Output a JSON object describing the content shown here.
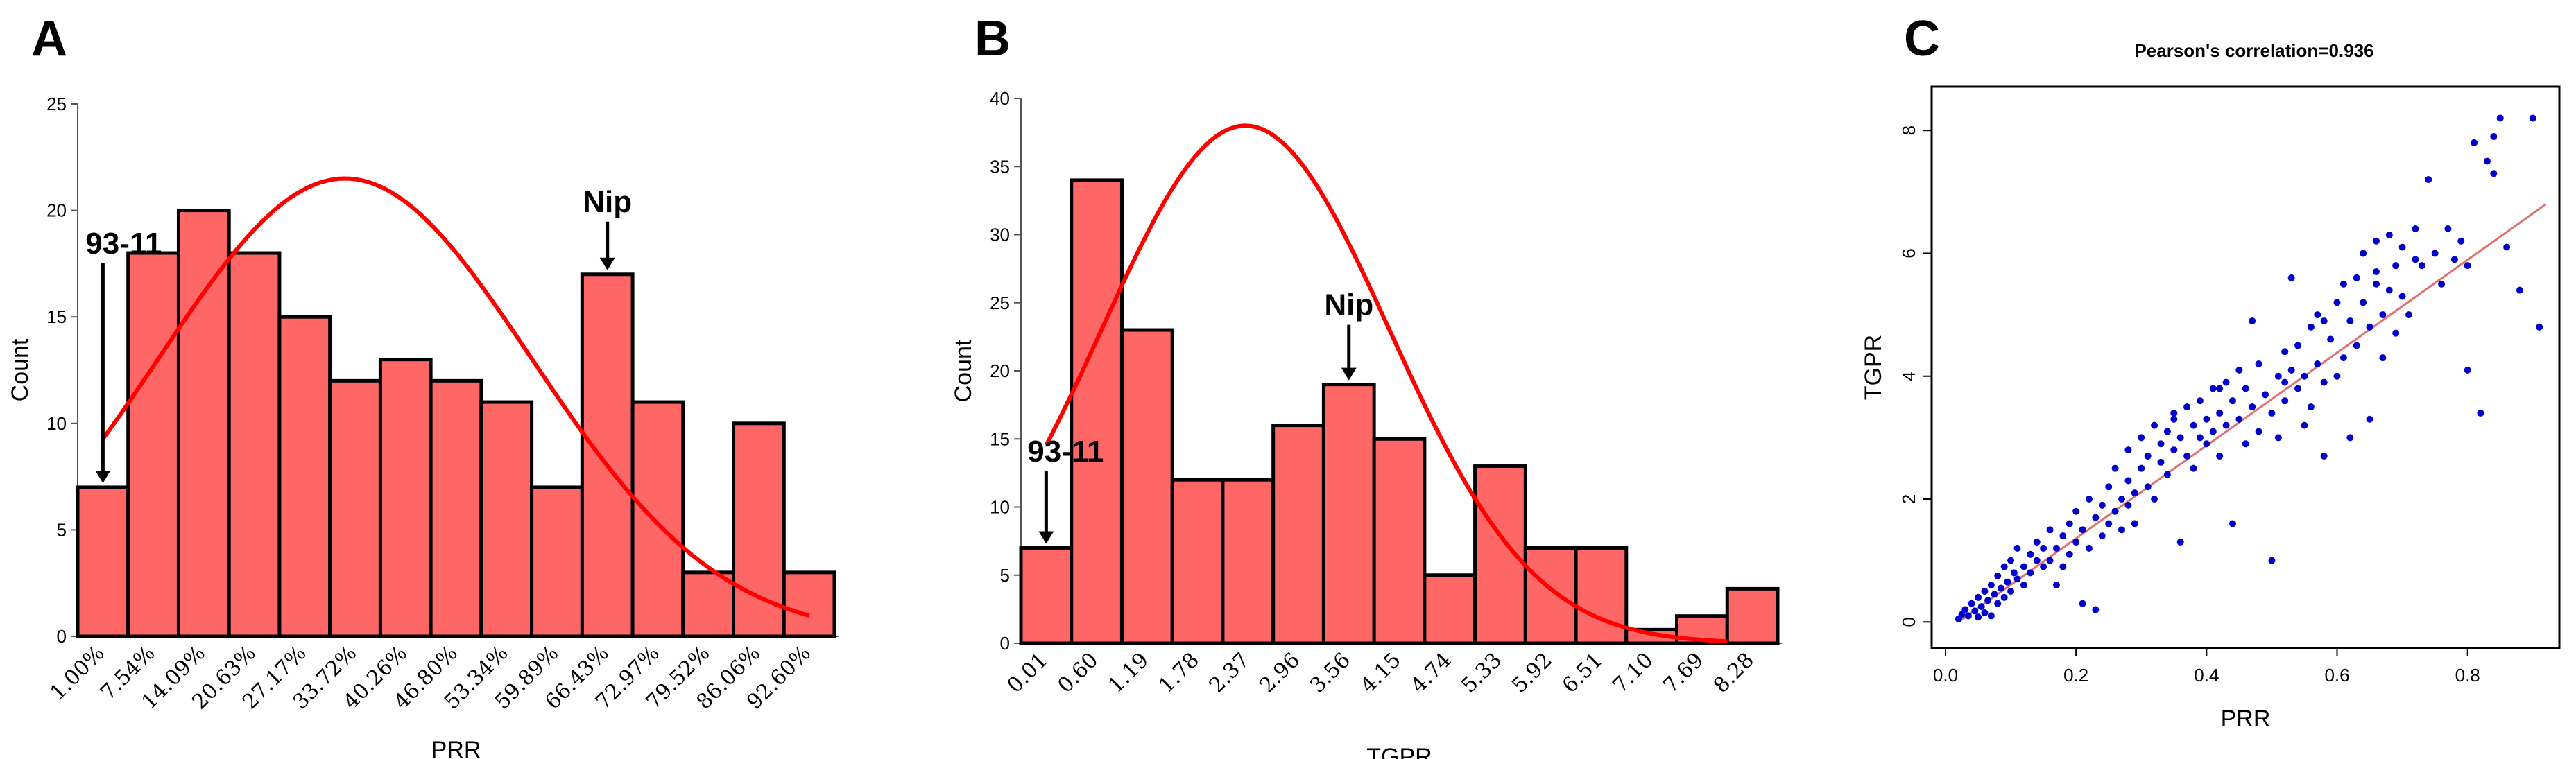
{
  "colors": {
    "bar": "#ff6666",
    "curve": "#ff0000",
    "point": "#0000cc",
    "trend": "#e07070"
  },
  "chart_data": [
    {
      "type": "bar",
      "panel": "A",
      "xlabel": "PRR",
      "ylabel": "Count",
      "ylim": [
        0,
        25
      ],
      "yticks": [
        0,
        5,
        10,
        15,
        20,
        25
      ],
      "categories": [
        "1.00%",
        "7.54%",
        "14.09%",
        "20.63%",
        "27.17%",
        "33.72%",
        "40.26%",
        "46.80%",
        "53.34%",
        "59.89%",
        "66.43%",
        "72.97%",
        "79.52%",
        "86.06%",
        "92.60%"
      ],
      "values": [
        7,
        18,
        20,
        18,
        15,
        12,
        13,
        12,
        11,
        7,
        17,
        11,
        3,
        10,
        3
      ],
      "normal_curve": {
        "peak_count": 21.5,
        "mean_bin": 5.3,
        "sd_bins": 3.7,
        "start_bin": 0.5,
        "end_bin": 14.5
      },
      "annotations": [
        {
          "label": "93-11",
          "bin": 0
        },
        {
          "label": "Nip",
          "bin": 10
        }
      ]
    },
    {
      "type": "bar",
      "panel": "B",
      "xlabel": "TGPR",
      "ylabel": "Count",
      "ylim": [
        0,
        40
      ],
      "yticks": [
        0,
        5,
        10,
        15,
        20,
        25,
        30,
        35,
        40
      ],
      "categories": [
        "0.01",
        "0.60",
        "1.19",
        "1.78",
        "2.37",
        "2.96",
        "3.56",
        "4.15",
        "4.74",
        "5.33",
        "5.92",
        "6.51",
        "7.10",
        "7.69",
        "8.28"
      ],
      "values": [
        7,
        34,
        23,
        12,
        12,
        16,
        19,
        15,
        5,
        13,
        7,
        7,
        1,
        2,
        4
      ],
      "normal_curve": {
        "peak_count": 38,
        "mean_bin": 4.45,
        "sd_bins": 2.85,
        "start_bin": 0.5,
        "end_bin": 14.0
      },
      "annotations": [
        {
          "label": "93-11",
          "bin": 0
        },
        {
          "label": "Nip",
          "bin": 6
        }
      ]
    },
    {
      "type": "scatter",
      "panel": "C",
      "title": "Pearson's correlation=0.936",
      "xlabel": "PRR",
      "ylabel": "TGPR",
      "xlim": [
        0,
        0.93
      ],
      "ylim": [
        -0.2,
        8.6
      ],
      "xticks": [
        0.0,
        0.2,
        0.4,
        0.6,
        0.8
      ],
      "yticks": [
        0,
        2,
        4,
        6,
        8
      ],
      "trendline": {
        "x0": 0.02,
        "y0": 0.0,
        "x1": 0.92,
        "y1": 6.8
      },
      "points": [
        [
          0.02,
          0.05
        ],
        [
          0.025,
          0.12
        ],
        [
          0.03,
          0.2
        ],
        [
          0.035,
          0.1
        ],
        [
          0.04,
          0.3
        ],
        [
          0.045,
          0.18
        ],
        [
          0.05,
          0.4
        ],
        [
          0.05,
          0.08
        ],
        [
          0.055,
          0.25
        ],
        [
          0.06,
          0.5
        ],
        [
          0.06,
          0.15
        ],
        [
          0.065,
          0.35
        ],
        [
          0.07,
          0.6
        ],
        [
          0.07,
          0.1
        ],
        [
          0.075,
          0.45
        ],
        [
          0.08,
          0.3
        ],
        [
          0.08,
          0.75
        ],
        [
          0.085,
          0.55
        ],
        [
          0.09,
          0.9
        ],
        [
          0.09,
          0.4
        ],
        [
          0.095,
          0.65
        ],
        [
          0.1,
          1.0
        ],
        [
          0.1,
          0.5
        ],
        [
          0.105,
          0.8
        ],
        [
          0.11,
          0.7
        ],
        [
          0.11,
          1.2
        ],
        [
          0.12,
          0.9
        ],
        [
          0.12,
          0.6
        ],
        [
          0.13,
          1.1
        ],
        [
          0.13,
          0.8
        ],
        [
          0.14,
          1.3
        ],
        [
          0.14,
          1.0
        ],
        [
          0.15,
          0.9
        ],
        [
          0.15,
          1.2
        ],
        [
          0.16,
          1.0
        ],
        [
          0.16,
          1.5
        ],
        [
          0.17,
          1.2
        ],
        [
          0.17,
          0.6
        ],
        [
          0.18,
          1.4
        ],
        [
          0.19,
          1.6
        ],
        [
          0.19,
          1.1
        ],
        [
          0.2,
          1.3
        ],
        [
          0.2,
          1.8
        ],
        [
          0.21,
          0.3
        ],
        [
          0.21,
          1.5
        ],
        [
          0.22,
          1.2
        ],
        [
          0.22,
          2.0
        ],
        [
          0.23,
          1.7
        ],
        [
          0.23,
          0.2
        ],
        [
          0.24,
          1.9
        ],
        [
          0.24,
          1.4
        ],
        [
          0.25,
          1.6
        ],
        [
          0.25,
          2.2
        ],
        [
          0.26,
          1.8
        ],
        [
          0.26,
          2.5
        ],
        [
          0.27,
          2.0
        ],
        [
          0.27,
          1.5
        ],
        [
          0.28,
          2.3
        ],
        [
          0.28,
          2.8
        ],
        [
          0.29,
          2.1
        ],
        [
          0.29,
          1.6
        ],
        [
          0.3,
          2.5
        ],
        [
          0.3,
          3.0
        ],
        [
          0.31,
          2.2
        ],
        [
          0.31,
          2.7
        ],
        [
          0.32,
          2.0
        ],
        [
          0.32,
          3.2
        ],
        [
          0.33,
          2.6
        ],
        [
          0.33,
          2.9
        ],
        [
          0.34,
          3.1
        ],
        [
          0.34,
          2.4
        ],
        [
          0.35,
          3.4
        ],
        [
          0.35,
          2.8
        ],
        [
          0.36,
          1.3
        ],
        [
          0.36,
          3.0
        ],
        [
          0.37,
          2.7
        ],
        [
          0.37,
          3.5
        ],
        [
          0.38,
          3.2
        ],
        [
          0.38,
          2.5
        ],
        [
          0.39,
          3.6
        ],
        [
          0.39,
          3.0
        ],
        [
          0.4,
          3.3
        ],
        [
          0.4,
          2.9
        ],
        [
          0.41,
          3.8
        ],
        [
          0.41,
          3.1
        ],
        [
          0.42,
          3.4
        ],
        [
          0.42,
          2.7
        ],
        [
          0.43,
          3.9
        ],
        [
          0.43,
          3.2
        ],
        [
          0.44,
          1.6
        ],
        [
          0.44,
          3.6
        ],
        [
          0.45,
          4.1
        ],
        [
          0.45,
          3.3
        ],
        [
          0.46,
          2.9
        ],
        [
          0.46,
          3.8
        ],
        [
          0.47,
          4.9
        ],
        [
          0.47,
          3.5
        ],
        [
          0.48,
          3.1
        ],
        [
          0.48,
          4.2
        ],
        [
          0.49,
          3.7
        ],
        [
          0.5,
          1.0
        ],
        [
          0.5,
          3.4
        ],
        [
          0.51,
          4.0
        ],
        [
          0.51,
          3.0
        ],
        [
          0.52,
          4.4
        ],
        [
          0.52,
          3.6
        ],
        [
          0.53,
          4.1
        ],
        [
          0.53,
          5.6
        ],
        [
          0.54,
          3.8
        ],
        [
          0.54,
          4.5
        ],
        [
          0.55,
          3.2
        ],
        [
          0.55,
          4.0
        ],
        [
          0.56,
          3.5
        ],
        [
          0.56,
          4.8
        ],
        [
          0.57,
          4.2
        ],
        [
          0.57,
          5.0
        ],
        [
          0.58,
          3.9
        ],
        [
          0.58,
          2.7
        ],
        [
          0.59,
          4.6
        ],
        [
          0.6,
          5.2
        ],
        [
          0.6,
          4.0
        ],
        [
          0.61,
          5.5
        ],
        [
          0.61,
          4.3
        ],
        [
          0.62,
          3.0
        ],
        [
          0.62,
          4.9
        ],
        [
          0.63,
          5.6
        ],
        [
          0.63,
          4.5
        ],
        [
          0.64,
          5.2
        ],
        [
          0.64,
          6.0
        ],
        [
          0.65,
          4.8
        ],
        [
          0.65,
          3.3
        ],
        [
          0.66,
          5.5
        ],
        [
          0.66,
          6.2
        ],
        [
          0.67,
          5.0
        ],
        [
          0.67,
          4.3
        ],
        [
          0.68,
          6.3
        ],
        [
          0.68,
          5.4
        ],
        [
          0.69,
          5.8
        ],
        [
          0.69,
          4.7
        ],
        [
          0.7,
          6.1
        ],
        [
          0.7,
          5.3
        ],
        [
          0.71,
          5.0
        ],
        [
          0.72,
          6.4
        ],
        [
          0.73,
          5.8
        ],
        [
          0.74,
          7.2
        ],
        [
          0.75,
          6.0
        ],
        [
          0.76,
          5.5
        ],
        [
          0.77,
          6.4
        ],
        [
          0.78,
          5.9
        ],
        [
          0.79,
          6.2
        ],
        [
          0.8,
          4.1
        ],
        [
          0.8,
          5.8
        ],
        [
          0.81,
          7.8
        ],
        [
          0.82,
          3.4
        ],
        [
          0.83,
          7.5
        ],
        [
          0.84,
          7.9
        ],
        [
          0.85,
          8.2
        ],
        [
          0.86,
          6.1
        ],
        [
          0.88,
          5.4
        ],
        [
          0.9,
          8.2
        ],
        [
          0.91,
          4.8
        ],
        [
          0.84,
          7.3
        ],
        [
          0.58,
          4.9
        ],
        [
          0.72,
          5.9
        ],
        [
          0.66,
          5.7
        ],
        [
          0.35,
          3.3
        ],
        [
          0.28,
          1.9
        ],
        [
          0.18,
          0.9
        ],
        [
          0.42,
          3.8
        ],
        [
          0.52,
          3.9
        ]
      ]
    }
  ]
}
